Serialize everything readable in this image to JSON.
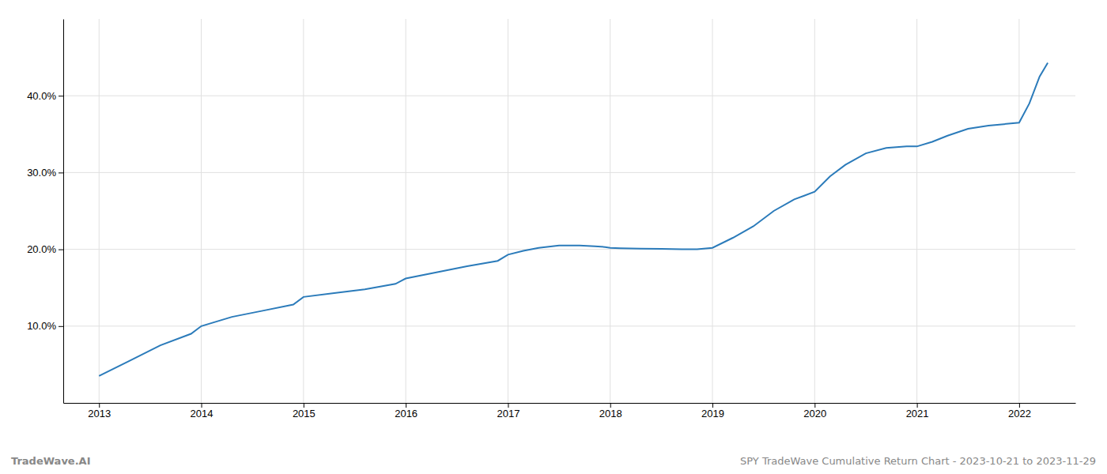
{
  "chart_data": {
    "type": "line",
    "title": "SPY TradeWave Cumulative Return Chart - 2023-10-21 to 2023-11-29",
    "annotations": [
      "TradeWave.AI"
    ],
    "x": [
      2013.0,
      2013.3,
      2013.6,
      2013.9,
      2014.0,
      2014.3,
      2014.6,
      2014.9,
      2015.0,
      2015.3,
      2015.6,
      2015.9,
      2016.0,
      2016.3,
      2016.6,
      2016.9,
      2017.0,
      2017.15,
      2017.3,
      2017.5,
      2017.7,
      2017.85,
      2017.95,
      2018.0,
      2018.1,
      2018.3,
      2018.5,
      2018.7,
      2018.85,
      2019.0,
      2019.2,
      2019.4,
      2019.6,
      2019.8,
      2020.0,
      2020.15,
      2020.3,
      2020.5,
      2020.7,
      2020.9,
      2021.0,
      2021.15,
      2021.3,
      2021.5,
      2021.7,
      2021.85,
      2022.0,
      2022.1,
      2022.2,
      2022.28
    ],
    "values": [
      3.5,
      5.5,
      7.5,
      9.0,
      10.0,
      11.2,
      12.0,
      12.8,
      13.8,
      14.3,
      14.8,
      15.5,
      16.2,
      17.0,
      17.8,
      18.5,
      19.3,
      19.8,
      20.2,
      20.5,
      20.5,
      20.4,
      20.3,
      20.2,
      20.15,
      20.1,
      20.05,
      20.0,
      20.0,
      20.2,
      21.5,
      23.0,
      25.0,
      26.5,
      27.5,
      29.5,
      31.0,
      32.5,
      33.2,
      33.4,
      33.4,
      34.0,
      34.8,
      35.7,
      36.1,
      36.3,
      36.5,
      39.0,
      42.5,
      44.3
    ],
    "color": "#2b7bba",
    "xlim": [
      2012.65,
      2022.55
    ],
    "xticks": [
      2013,
      2014,
      2015,
      2016,
      2017,
      2018,
      2019,
      2020,
      2021,
      2022
    ],
    "ylim": [
      0,
      50
    ],
    "yticks": [
      {
        "value": 10.0,
        "label": "10.0%"
      },
      {
        "value": 20.0,
        "label": "20.0%"
      },
      {
        "value": 30.0,
        "label": "30.0%"
      },
      {
        "value": 40.0,
        "label": "40.0%"
      }
    ],
    "grid": true
  }
}
